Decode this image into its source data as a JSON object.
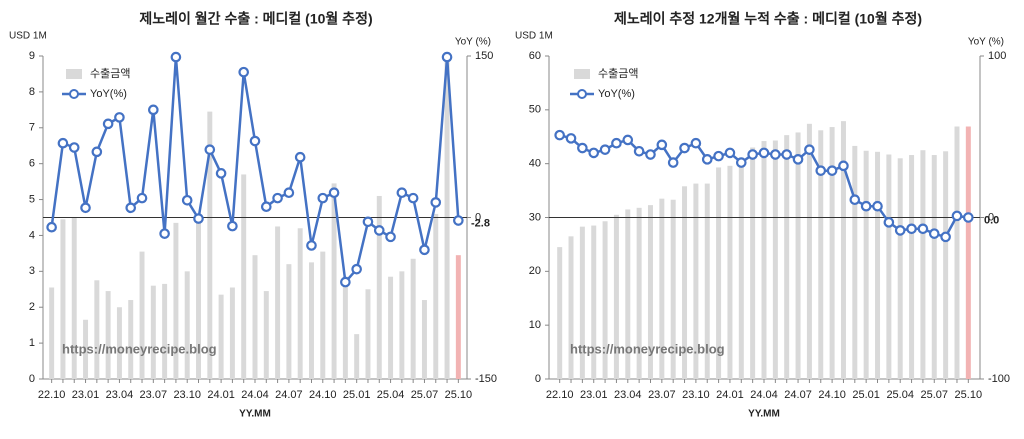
{
  "chart_data": [
    {
      "type": "combo",
      "title": "제노레이 월간 수출 : 메디컬 (10월 추정)",
      "y_label": "USD 1M",
      "y2_label": "YoY (%)",
      "x_label": "YY.MM",
      "annotation": "https://moneyrecipe.blog",
      "categories": [
        "22.10",
        null,
        null,
        "23.01",
        null,
        null,
        "23.04",
        null,
        null,
        "23.07",
        null,
        null,
        "23.10",
        null,
        null,
        "24.01",
        null,
        null,
        "24.04",
        null,
        null,
        "24.07",
        null,
        null,
        "24.10",
        null,
        null,
        "25.01",
        null,
        null,
        "25.04",
        null,
        null,
        "25.07",
        null,
        null,
        "25.10"
      ],
      "series": [
        {
          "name": "수출금액",
          "type": "bar",
          "color": "#d9d9d9",
          "colors": [
            "#d9d9d9",
            "#d9d9d9",
            "#d9d9d9",
            "#d9d9d9",
            "#d9d9d9",
            "#d9d9d9",
            "#d9d9d9",
            "#d9d9d9",
            "#d9d9d9",
            "#d9d9d9",
            "#d9d9d9",
            "#d9d9d9",
            "#d9d9d9",
            "#d9d9d9",
            "#d9d9d9",
            "#d9d9d9",
            "#d9d9d9",
            "#d9d9d9",
            "#d9d9d9",
            "#d9d9d9",
            "#d9d9d9",
            "#d9d9d9",
            "#d9d9d9",
            "#d9d9d9",
            "#d9d9d9",
            "#d9d9d9",
            "#d9d9d9",
            "#d9d9d9",
            "#d9d9d9",
            "#d9d9d9",
            "#d9d9d9",
            "#d9d9d9",
            "#d9d9d9",
            "#d9d9d9",
            "#d9d9d9",
            "#d9d9d9",
            "#f2b3b3"
          ],
          "values": [
            2.55,
            4.45,
            4.5,
            1.65,
            2.75,
            2.45,
            2.0,
            2.2,
            3.55,
            2.6,
            2.65,
            4.35,
            3.0,
            4.5,
            7.45,
            2.35,
            2.55,
            5.7,
            3.45,
            2.45,
            4.25,
            3.2,
            4.2,
            3.25,
            3.55,
            5.45,
            2.85,
            1.25,
            2.5,
            5.1,
            2.85,
            3.0,
            3.35,
            2.2,
            4.6,
            8.9,
            3.45
          ]
        },
        {
          "name": "YoY(%)",
          "type": "line",
          "axis": "y2",
          "color": "#4472c4",
          "value_label_color": "#e0302a",
          "values": [
            -9,
            69,
            65,
            9,
            61,
            87,
            93,
            9,
            18,
            100,
            -15,
            149,
            16,
            -1,
            63,
            41,
            -8,
            135,
            71,
            10,
            18,
            23,
            56,
            -26,
            18,
            23,
            -60,
            -48,
            -4,
            -12,
            -18,
            23,
            18,
            -30,
            14,
            149,
            -2.8
          ],
          "value_labels": [
            null,
            null,
            null,
            null,
            null,
            null,
            null,
            null,
            null,
            null,
            null,
            null,
            null,
            null,
            null,
            null,
            null,
            null,
            null,
            null,
            null,
            null,
            null,
            null,
            null,
            null,
            null,
            null,
            null,
            null,
            null,
            null,
            null,
            null,
            null,
            null,
            "-2.8"
          ]
        }
      ],
      "ylim": [
        0,
        9
      ],
      "yticks": [
        0,
        1,
        2,
        3,
        4,
        5,
        6,
        7,
        8,
        9
      ],
      "y2lim": [
        -150,
        150
      ],
      "y2ticks": [
        -150,
        0,
        150
      ],
      "zero_line": true
    },
    {
      "type": "combo",
      "title": "제노레이 추정 12개월 누적 수출 : 메디컬 (10월 추정)",
      "y_label": "USD 1M",
      "y2_label": "YoY (%)",
      "x_label": "YY.MM",
      "annotation": "https://moneyrecipe.blog",
      "categories": [
        "22.10",
        null,
        null,
        "23.01",
        null,
        null,
        "23.04",
        null,
        null,
        "23.07",
        null,
        null,
        "23.10",
        null,
        null,
        "24.01",
        null,
        null,
        "24.04",
        null,
        null,
        "24.07",
        null,
        null,
        "24.10",
        null,
        null,
        "25.01",
        null,
        null,
        "25.04",
        null,
        null,
        "25.07",
        null,
        null,
        "25.10"
      ],
      "series": [
        {
          "name": "수출금액",
          "type": "bar",
          "color": "#d9d9d9",
          "colors": [
            "#d9d9d9",
            "#d9d9d9",
            "#d9d9d9",
            "#d9d9d9",
            "#d9d9d9",
            "#d9d9d9",
            "#d9d9d9",
            "#d9d9d9",
            "#d9d9d9",
            "#d9d9d9",
            "#d9d9d9",
            "#d9d9d9",
            "#d9d9d9",
            "#d9d9d9",
            "#d9d9d9",
            "#d9d9d9",
            "#d9d9d9",
            "#d9d9d9",
            "#d9d9d9",
            "#d9d9d9",
            "#d9d9d9",
            "#d9d9d9",
            "#d9d9d9",
            "#d9d9d9",
            "#d9d9d9",
            "#d9d9d9",
            "#d9d9d9",
            "#d9d9d9",
            "#d9d9d9",
            "#d9d9d9",
            "#d9d9d9",
            "#d9d9d9",
            "#d9d9d9",
            "#d9d9d9",
            "#d9d9d9",
            "#d9d9d9",
            "#f2b3b3"
          ],
          "values": [
            24.5,
            26.5,
            28.3,
            28.5,
            29.3,
            30.5,
            31.5,
            31.8,
            32.3,
            33.5,
            33.3,
            35.8,
            36.3,
            36.3,
            39.3,
            39.6,
            40.6,
            43.0,
            44.2,
            44.3,
            45.3,
            45.8,
            47.4,
            46.2,
            46.8,
            47.9,
            43.3,
            42.4,
            42.2,
            41.7,
            41.0,
            41.6,
            42.5,
            41.6,
            42.3,
            46.9,
            46.9
          ]
        },
        {
          "name": "YoY(%)",
          "type": "line",
          "axis": "y2",
          "color": "#4472c4",
          "value_label_color": "#e0302a",
          "values": [
            51,
            49,
            43,
            40,
            42,
            46,
            48,
            41,
            39,
            45,
            34,
            43,
            46,
            36,
            38,
            40,
            34,
            39,
            40,
            39,
            39,
            36,
            42,
            29,
            29,
            32,
            11,
            7,
            7,
            -3,
            -8,
            -7,
            -7,
            -10,
            -12,
            1,
            0
          ],
          "value_labels": [
            null,
            null,
            null,
            null,
            null,
            null,
            null,
            null,
            null,
            null,
            null,
            null,
            null,
            null,
            null,
            null,
            null,
            null,
            null,
            null,
            null,
            null,
            null,
            null,
            null,
            null,
            null,
            null,
            null,
            null,
            null,
            null,
            null,
            null,
            null,
            null,
            "0.0"
          ]
        }
      ],
      "ylim": [
        0,
        60
      ],
      "yticks": [
        0,
        10,
        20,
        30,
        40,
        50,
        60
      ],
      "y2lim": [
        -100,
        100
      ],
      "y2ticks": [
        -100,
        0,
        100
      ],
      "zero_line": true
    }
  ]
}
